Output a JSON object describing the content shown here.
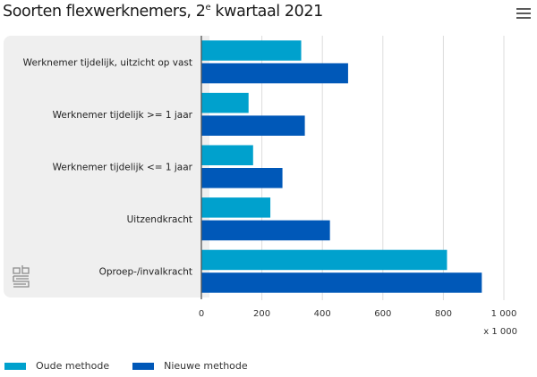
{
  "header": {
    "title_main": "Soorten flexwerknemers, 2",
    "title_sup": "e",
    "title_rest": " kwartaal 2021",
    "menu_icon": "hamburger-menu-icon"
  },
  "logo": {
    "icon": "cbs-logo-icon"
  },
  "chart_data": {
    "type": "bar",
    "orientation": "horizontal",
    "title": "Soorten flexwerknemers, 2e kwartaal 2021",
    "categories": [
      "Werknemer tijdelijk, uitzicht op vast",
      "Werknemer tijdelijk >= 1 jaar",
      "Werknemer tijdelijk <= 1 jaar",
      "Uitzendkracht",
      "Oproep-/invalkracht"
    ],
    "series": [
      {
        "name": "Oude methode",
        "color": "#00a1cd",
        "values": [
          330,
          156,
          171,
          228,
          812
        ]
      },
      {
        "name": "Nieuwe methode",
        "color": "#0058b8",
        "values": [
          485,
          342,
          268,
          425,
          927
        ]
      }
    ],
    "xlabel": "",
    "ylabel": "",
    "x_unit_label": "x 1 000",
    "xlim": [
      0,
      1000
    ],
    "xticks": [
      0,
      200,
      400,
      600,
      800,
      1000
    ],
    "xtick_labels": [
      "0",
      "200",
      "400",
      "600",
      "800",
      "1 000"
    ],
    "grid": true,
    "legend_position": "bottom-left"
  },
  "legend": [
    {
      "label": "Oude methode",
      "color": "#00a1cd"
    },
    {
      "label": "Nieuwe methode",
      "color": "#0058b8"
    }
  ]
}
